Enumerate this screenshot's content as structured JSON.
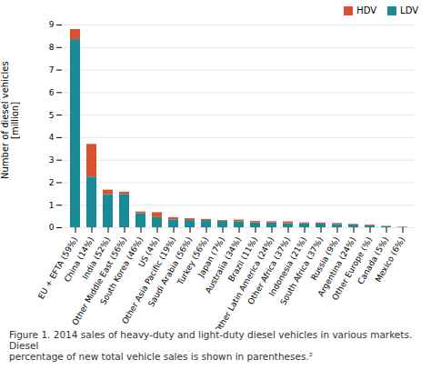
{
  "chart_data": {
    "type": "bar",
    "stacked": true,
    "categories": [
      "EU + EFTA (59%)",
      "China (14%)",
      "India (52%)",
      "Other Middle East (56%)",
      "South Korea (46%)",
      "US (4%)",
      "Other Asia Pacific (19%)",
      "Saudi Arabia (56%)",
      "Turkey (56%)",
      "Japan (7%)",
      "Australia (34%)",
      "Brazil (11%)",
      "Other Latin America (24%)",
      "Other Africa (37%)",
      "Indonesia (21%)",
      "South Africa (37%)",
      "Russia (9%)",
      "Argentina (24%)",
      "Other Europe (%)",
      "Canada (5%)",
      "Mexico (6%)"
    ],
    "series": [
      {
        "name": "LDV",
        "color": "#1a8a97",
        "values": [
          8.35,
          2.25,
          1.47,
          1.48,
          0.63,
          0.45,
          0.35,
          0.32,
          0.32,
          0.28,
          0.27,
          0.22,
          0.22,
          0.18,
          0.18,
          0.16,
          0.15,
          0.12,
          0.09,
          0.05,
          0.02
        ]
      },
      {
        "name": "HDV",
        "color": "#d9522b",
        "values": [
          0.45,
          1.45,
          0.2,
          0.1,
          0.07,
          0.22,
          0.1,
          0.08,
          0.05,
          0.04,
          0.07,
          0.06,
          0.05,
          0.08,
          0.04,
          0.05,
          0.04,
          0.03,
          0.03,
          0.015,
          0.01
        ]
      }
    ],
    "ylabel": "Number of diesel vehicles\n[million]",
    "ylim": [
      0,
      9
    ],
    "yticks": [
      0,
      1,
      2,
      3,
      4,
      5,
      6,
      7,
      8,
      9
    ],
    "grid": true,
    "legend": "upper right",
    "caption": "Figure 1. 2014 sales of heavy-duty and light-duty diesel vehicles in various markets. Diesel\npercentage of new total vehicle sales is shown in parentheses.²"
  }
}
